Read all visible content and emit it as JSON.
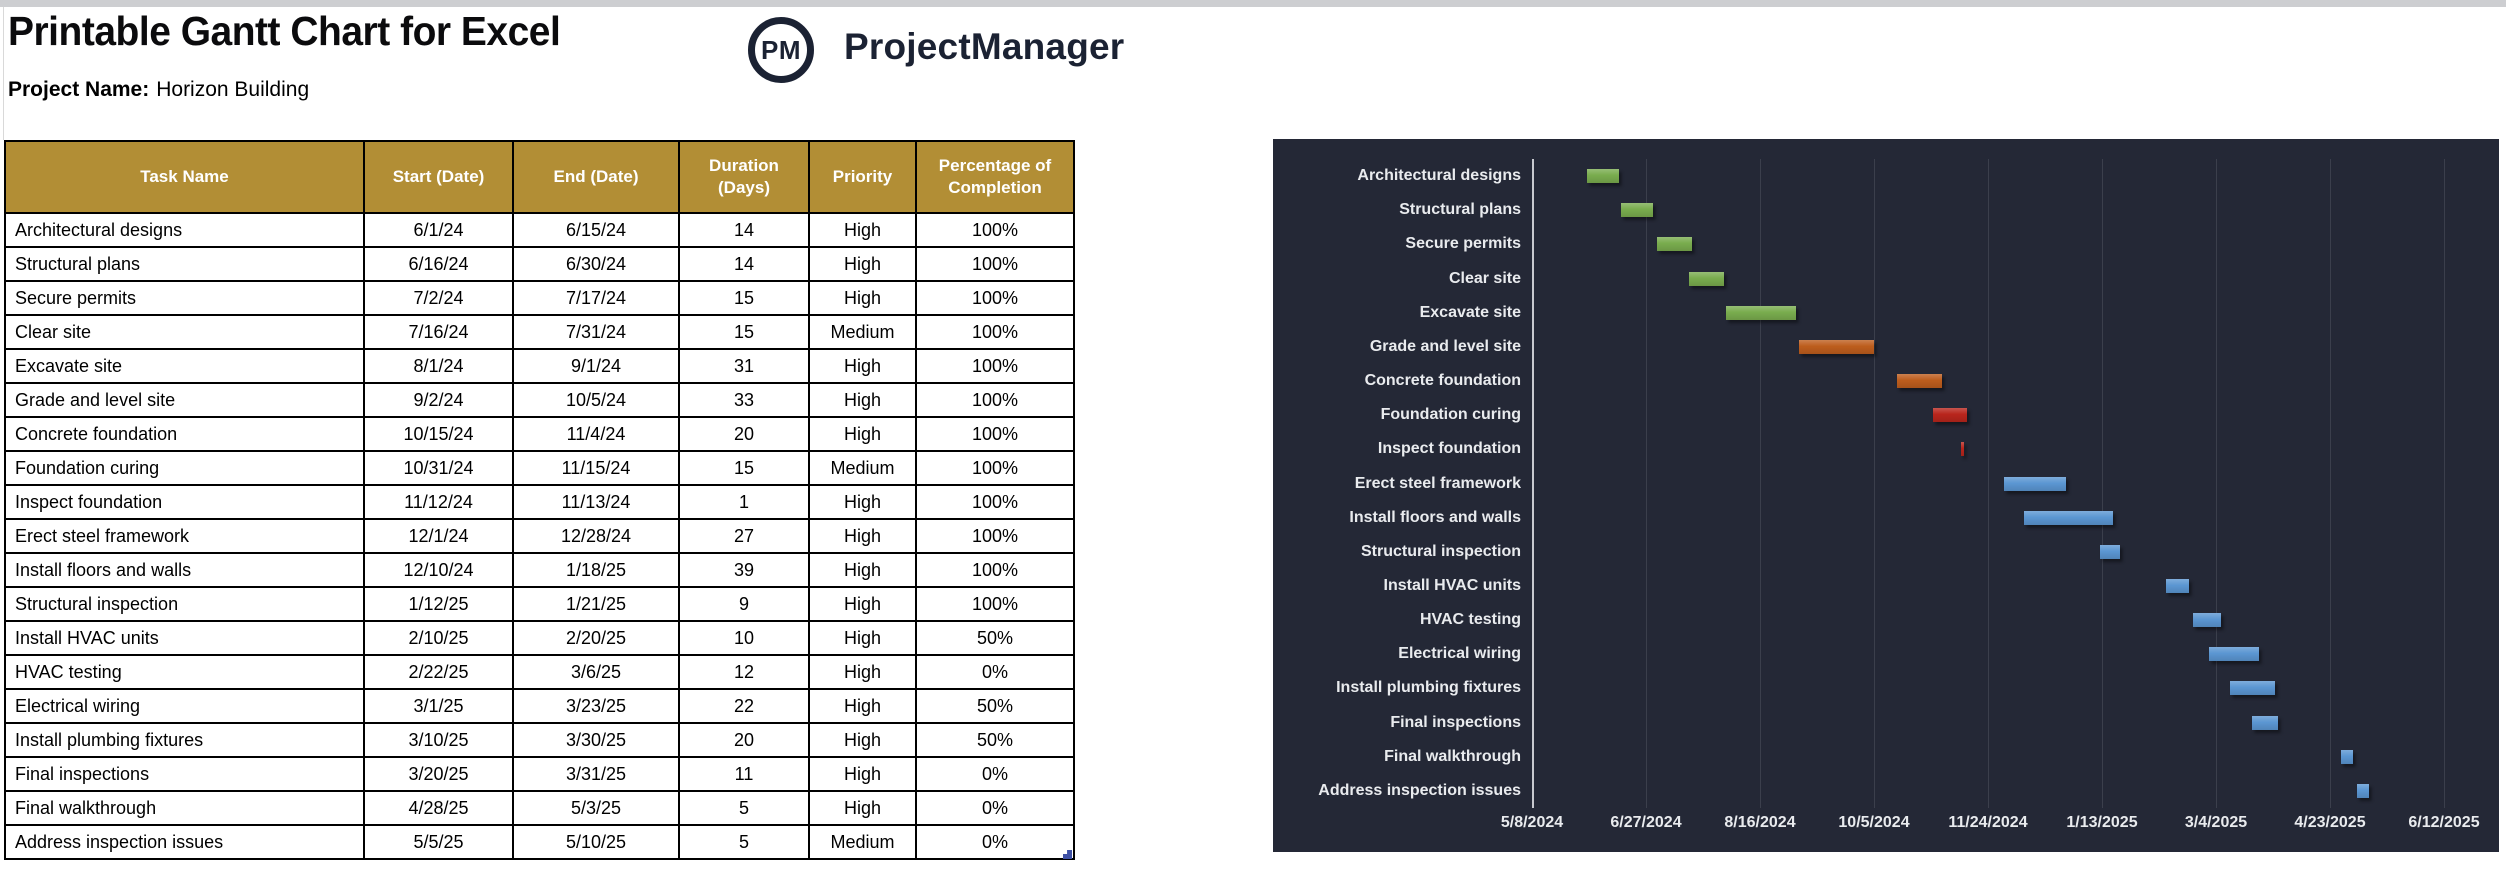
{
  "page": {
    "title": "Printable Gantt Chart for Excel",
    "project_label": "Project Name:",
    "project_name": "Horizon Building",
    "logo": {
      "monogram": "PM",
      "brand": "ProjectManager"
    }
  },
  "colors": {
    "header_bg": "#b28e35",
    "chart_bg": "#242836",
    "gridline": "#3b3f4c",
    "axis_line": "#c7c9cf",
    "green": "#79ac4e",
    "orange": "#bd5d1d",
    "red": "#b8251c",
    "blue": "#5b96d2",
    "fill_handle_blue": "#3f51a5"
  },
  "table": {
    "headers": [
      "Task Name",
      "Start (Date)",
      "End (Date)",
      "Duration (Days)",
      "Priority",
      "Percentage of Completion"
    ],
    "rows": [
      [
        "Architectural designs",
        "6/1/24",
        "6/15/24",
        "14",
        "High",
        "100%"
      ],
      [
        "Structural plans",
        "6/16/24",
        "6/30/24",
        "14",
        "High",
        "100%"
      ],
      [
        "Secure permits",
        "7/2/24",
        "7/17/24",
        "15",
        "High",
        "100%"
      ],
      [
        "Clear site",
        "7/16/24",
        "7/31/24",
        "15",
        "Medium",
        "100%"
      ],
      [
        "Excavate site",
        "8/1/24",
        "9/1/24",
        "31",
        "High",
        "100%"
      ],
      [
        "Grade and level site",
        "9/2/24",
        "10/5/24",
        "33",
        "High",
        "100%"
      ],
      [
        "Concrete foundation",
        "10/15/24",
        "11/4/24",
        "20",
        "High",
        "100%"
      ],
      [
        "Foundation curing",
        "10/31/24",
        "11/15/24",
        "15",
        "Medium",
        "100%"
      ],
      [
        "Inspect foundation",
        "11/12/24",
        "11/13/24",
        "1",
        "High",
        "100%"
      ],
      [
        "Erect steel framework",
        "12/1/24",
        "12/28/24",
        "27",
        "High",
        "100%"
      ],
      [
        "Install floors and walls",
        "12/10/24",
        "1/18/25",
        "39",
        "High",
        "100%"
      ],
      [
        "Structural inspection",
        "1/12/25",
        "1/21/25",
        "9",
        "High",
        "100%"
      ],
      [
        "Install HVAC units",
        "2/10/25",
        "2/20/25",
        "10",
        "High",
        "50%"
      ],
      [
        "HVAC testing",
        "2/22/25",
        "3/6/25",
        "12",
        "High",
        "0%"
      ],
      [
        "Electrical wiring",
        "3/1/25",
        "3/23/25",
        "22",
        "High",
        "50%"
      ],
      [
        "Install plumbing fixtures",
        "3/10/25",
        "3/30/25",
        "20",
        "High",
        "50%"
      ],
      [
        "Final inspections",
        "3/20/25",
        "3/31/25",
        "11",
        "High",
        "0%"
      ],
      [
        "Final walkthrough",
        "4/28/25",
        "5/3/25",
        "5",
        "High",
        "0%"
      ],
      [
        "Address inspection issues",
        "5/5/25",
        "5/10/25",
        "5",
        "Medium",
        "0%"
      ]
    ]
  },
  "chart_data": {
    "type": "bar",
    "subtype": "gantt",
    "axis_start_date": "5/8/2024",
    "tick_interval_days": 50,
    "x_ticks": [
      "5/8/2024",
      "6/27/2024",
      "8/16/2024",
      "10/5/2024",
      "11/24/2024",
      "1/13/2025",
      "3/4/2025",
      "4/23/2025",
      "6/12/2025"
    ],
    "x_range_days": [
      0,
      424
    ],
    "grid": true,
    "legend": false,
    "tasks": [
      {
        "name": "Architectural designs",
        "start": "6/1/24",
        "end": "6/15/24",
        "start_day": 24,
        "end_day": 38,
        "color": "green"
      },
      {
        "name": "Structural plans",
        "start": "6/16/24",
        "end": "6/30/24",
        "start_day": 39,
        "end_day": 53,
        "color": "green"
      },
      {
        "name": "Secure permits",
        "start": "7/2/24",
        "end": "7/17/24",
        "start_day": 55,
        "end_day": 70,
        "color": "green"
      },
      {
        "name": "Clear site",
        "start": "7/16/24",
        "end": "7/31/24",
        "start_day": 69,
        "end_day": 84,
        "color": "green"
      },
      {
        "name": "Excavate site",
        "start": "8/1/24",
        "end": "9/1/24",
        "start_day": 85,
        "end_day": 116,
        "color": "green"
      },
      {
        "name": "Grade and level site",
        "start": "9/2/24",
        "end": "10/5/24",
        "start_day": 117,
        "end_day": 150,
        "color": "orange"
      },
      {
        "name": "Concrete foundation",
        "start": "10/15/24",
        "end": "11/4/24",
        "start_day": 160,
        "end_day": 180,
        "color": "orange"
      },
      {
        "name": "Foundation curing",
        "start": "10/31/24",
        "end": "11/15/24",
        "start_day": 176,
        "end_day": 191,
        "color": "red"
      },
      {
        "name": "Inspect foundation",
        "start": "11/12/24",
        "end": "11/13/24",
        "start_day": 188,
        "end_day": 189,
        "color": "red"
      },
      {
        "name": "Erect steel framework",
        "start": "12/1/24",
        "end": "12/28/24",
        "start_day": 207,
        "end_day": 234,
        "color": "blue"
      },
      {
        "name": "Install floors and walls",
        "start": "12/10/24",
        "end": "1/18/25",
        "start_day": 216,
        "end_day": 255,
        "color": "blue"
      },
      {
        "name": "Structural inspection",
        "start": "1/12/25",
        "end": "1/21/25",
        "start_day": 249,
        "end_day": 258,
        "color": "blue"
      },
      {
        "name": "Install HVAC units",
        "start": "2/10/25",
        "end": "2/20/25",
        "start_day": 278,
        "end_day": 288,
        "color": "blue"
      },
      {
        "name": "HVAC testing",
        "start": "2/22/25",
        "end": "3/6/25",
        "start_day": 290,
        "end_day": 302,
        "color": "blue"
      },
      {
        "name": "Electrical wiring",
        "start": "3/1/25",
        "end": "3/23/25",
        "start_day": 297,
        "end_day": 319,
        "color": "blue"
      },
      {
        "name": "Install plumbing fixtures",
        "start": "3/10/25",
        "end": "3/30/25",
        "start_day": 306,
        "end_day": 326,
        "color": "blue"
      },
      {
        "name": "Final inspections",
        "start": "3/20/25",
        "end": "3/31/25",
        "start_day": 316,
        "end_day": 327,
        "color": "blue"
      },
      {
        "name": "Final walkthrough",
        "start": "4/28/25",
        "end": "5/3/25",
        "start_day": 355,
        "end_day": 360,
        "color": "blue"
      },
      {
        "name": "Address inspection issues",
        "start": "5/5/25",
        "end": "5/10/25",
        "start_day": 362,
        "end_day": 367,
        "color": "blue"
      }
    ]
  }
}
